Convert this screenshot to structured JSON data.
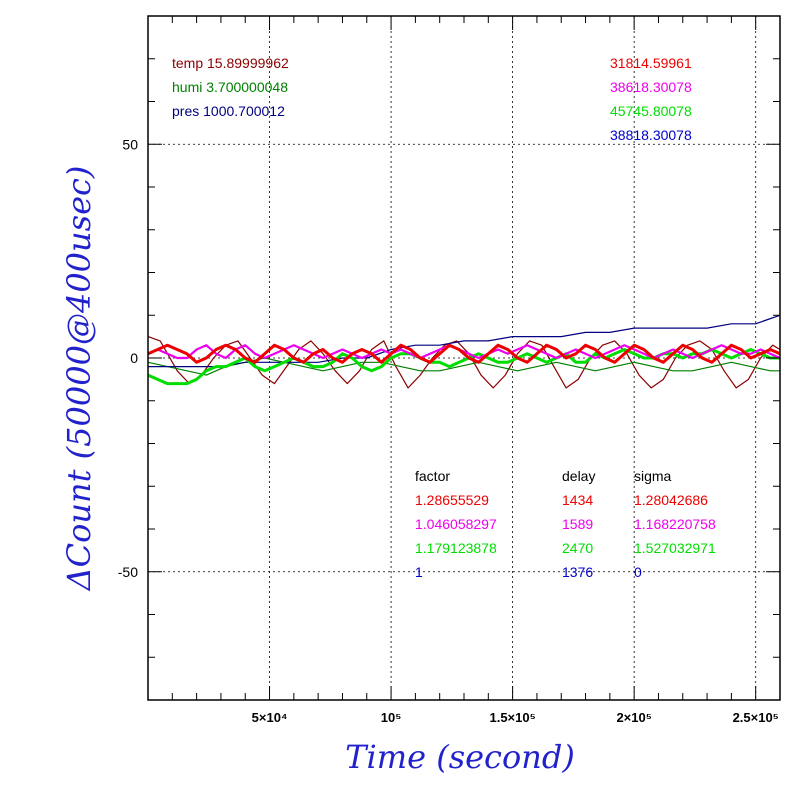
{
  "chart_data": {
    "type": "line",
    "xlabel": "Time (second)",
    "ylabel": "ΔCount (50000@400usec)",
    "xlim": [
      0,
      260000
    ],
    "ylim": [
      -80,
      80
    ],
    "grid": true,
    "x_ticks": [
      {
        "value": 50000,
        "label": "5×10⁴"
      },
      {
        "value": 100000,
        "label": "10⁵"
      },
      {
        "value": 150000,
        "label": "1.5×10⁵"
      },
      {
        "value": 200000,
        "label": "2×10⁵"
      },
      {
        "value": 250000,
        "label": "2.5×10⁵"
      }
    ],
    "y_ticks": [
      {
        "value": 50,
        "label": "50"
      },
      {
        "value": 0,
        "label": "0"
      },
      {
        "value": -50,
        "label": "-50"
      }
    ],
    "env_legend": [
      {
        "text": "temp 15.89999962",
        "color": "#8b0000"
      },
      {
        "text": "humi 3.700000048",
        "color": "#008000"
      },
      {
        "text": "pres 1000.700012",
        "color": "#000080"
      }
    ],
    "count_legend": [
      {
        "text": "31814.59961",
        "color": "#ee0000"
      },
      {
        "text": "38618.30078",
        "color": "#ee00ee"
      },
      {
        "text": "45745.80078",
        "color": "#00dd00"
      },
      {
        "text": "38818.30078",
        "color": "#0000cc"
      }
    ],
    "stats_table": {
      "headers": [
        "factor",
        "delay",
        "sigma"
      ],
      "rows": [
        {
          "factor": "1.28655529",
          "delay": "1434",
          "sigma": "1.28042686",
          "color": "#ee0000"
        },
        {
          "factor": "1.046058297",
          "delay": "1589",
          "sigma": "1.168220758",
          "color": "#ee00ee"
        },
        {
          "factor": "1.179123878",
          "delay": "2470",
          "sigma": "1.527032971",
          "color": "#00dd00"
        },
        {
          "factor": "1",
          "delay": "1376",
          "sigma": "0",
          "color": "#0000cc"
        }
      ]
    },
    "series": [
      {
        "color": "#8b0000",
        "x": [
          0,
          5000,
          12000,
          17000,
          22000,
          27000,
          32000,
          37000,
          42000,
          47000,
          52000,
          57000,
          62000,
          67000,
          72000,
          77000,
          82000,
          87000,
          92000,
          97000,
          102000,
          107000,
          112000,
          117000,
          122000,
          127000,
          132000,
          137000,
          142000,
          147000,
          152000,
          157000,
          162000,
          167000,
          172000,
          177000,
          182000,
          187000,
          192000,
          197000,
          202000,
          207000,
          212000,
          217000,
          222000,
          227000,
          232000,
          237000,
          242000,
          247000,
          252000,
          257000,
          260000
        ],
        "y": [
          5,
          4,
          -3,
          -6,
          -4,
          0,
          3,
          4,
          0,
          -4,
          -6,
          -2,
          2,
          4,
          1,
          -3,
          -6,
          -3,
          2,
          4,
          -2,
          -7,
          -4,
          0,
          3,
          4,
          1,
          -4,
          -7,
          -4,
          1,
          4,
          3,
          -2,
          -7,
          -5,
          0,
          3,
          4,
          1,
          -4,
          -7,
          -5,
          0,
          3,
          4,
          2,
          -3,
          -7,
          -5,
          0,
          3,
          2
        ]
      },
      {
        "color": "#008000",
        "x": [
          0,
          8000,
          16000,
          24000,
          32000,
          40000,
          48000,
          56000,
          64000,
          72000,
          80000,
          88000,
          96000,
          104000,
          112000,
          120000,
          128000,
          136000,
          144000,
          152000,
          160000,
          168000,
          176000,
          184000,
          192000,
          200000,
          208000,
          216000,
          224000,
          232000,
          240000,
          248000,
          256000,
          260000
        ],
        "y": [
          -1,
          -2,
          -3,
          -4,
          -2,
          -1,
          0,
          -1,
          -2,
          -3,
          -2,
          -1,
          -1,
          -2,
          -3,
          -3,
          -2,
          -1,
          -2,
          -3,
          -2,
          -1,
          -2,
          -3,
          -2,
          -1,
          -2,
          -3,
          -3,
          -2,
          -1,
          -2,
          -3,
          -3
        ]
      },
      {
        "color": "#000080",
        "x": [
          0,
          10000,
          20000,
          30000,
          40000,
          50000,
          60000,
          70000,
          80000,
          90000,
          100000,
          110000,
          120000,
          130000,
          140000,
          150000,
          160000,
          170000,
          180000,
          190000,
          200000,
          210000,
          220000,
          230000,
          240000,
          250000,
          255000,
          260000
        ],
        "y": [
          -2,
          -2,
          -2,
          -2,
          -1,
          -1,
          -1,
          -1,
          0,
          0,
          2,
          3,
          3,
          4,
          4,
          5,
          5,
          5,
          6,
          6,
          7,
          7,
          7,
          7,
          8,
          8,
          9,
          10
        ]
      },
      {
        "color": "#00dd00",
        "x": [
          0,
          4000,
          8000,
          12000,
          16000,
          20000,
          24000,
          28000,
          32000,
          36000,
          40000,
          44000,
          48000,
          52000,
          56000,
          60000,
          64000,
          68000,
          72000,
          76000,
          80000,
          84000,
          88000,
          92000,
          96000,
          100000,
          104000,
          108000,
          112000,
          116000,
          120000,
          124000,
          128000,
          132000,
          136000,
          140000,
          144000,
          148000,
          152000,
          156000,
          160000,
          164000,
          168000,
          172000,
          176000,
          180000,
          184000,
          188000,
          192000,
          196000,
          200000,
          204000,
          208000,
          212000,
          216000,
          220000,
          224000,
          228000,
          232000,
          236000,
          240000,
          244000,
          248000,
          252000,
          256000,
          260000
        ],
        "y": [
          -4,
          -5,
          -6,
          -6,
          -6,
          -5,
          -3,
          -2,
          -2,
          -1,
          0,
          -2,
          -3,
          -2,
          -1,
          0,
          -1,
          -2,
          -2,
          -1,
          1,
          0,
          -2,
          -3,
          -2,
          0,
          1,
          1,
          0,
          -1,
          -1,
          -2,
          -1,
          0,
          1,
          0,
          -1,
          -1,
          0,
          1,
          0,
          -1,
          0,
          1,
          -1,
          -1,
          1,
          0,
          1,
          2,
          1,
          0,
          0,
          1,
          1,
          0,
          1,
          1,
          2,
          1,
          0,
          1,
          2,
          1,
          0,
          0
        ]
      },
      {
        "color": "#ee00ee",
        "x": [
          0,
          4000,
          8000,
          12000,
          16000,
          20000,
          24000,
          28000,
          32000,
          36000,
          40000,
          44000,
          48000,
          52000,
          56000,
          60000,
          64000,
          68000,
          72000,
          76000,
          80000,
          84000,
          88000,
          92000,
          96000,
          100000,
          104000,
          108000,
          112000,
          116000,
          120000,
          124000,
          128000,
          132000,
          136000,
          140000,
          144000,
          148000,
          152000,
          156000,
          160000,
          164000,
          168000,
          172000,
          176000,
          180000,
          184000,
          188000,
          192000,
          196000,
          200000,
          204000,
          208000,
          212000,
          216000,
          220000,
          224000,
          228000,
          232000,
          236000,
          240000,
          244000,
          248000,
          252000,
          256000,
          260000
        ],
        "y": [
          1,
          2,
          1,
          0,
          0,
          2,
          3,
          1,
          0,
          2,
          3,
          1,
          0,
          1,
          2,
          3,
          2,
          1,
          0,
          1,
          2,
          1,
          0,
          1,
          2,
          1,
          2,
          1,
          0,
          1,
          2,
          3,
          2,
          1,
          0,
          1,
          2,
          1,
          2,
          3,
          2,
          1,
          0,
          1,
          2,
          1,
          0,
          1,
          2,
          3,
          2,
          1,
          0,
          1,
          2,
          1,
          0,
          1,
          2,
          3,
          2,
          1,
          1,
          2,
          1,
          0
        ]
      },
      {
        "color": "#ee0000",
        "x": [
          0,
          4000,
          8000,
          12000,
          16000,
          20000,
          24000,
          28000,
          32000,
          36000,
          40000,
          44000,
          48000,
          52000,
          56000,
          60000,
          64000,
          68000,
          72000,
          76000,
          80000,
          84000,
          88000,
          92000,
          96000,
          100000,
          104000,
          108000,
          112000,
          116000,
          120000,
          124000,
          128000,
          132000,
          136000,
          140000,
          144000,
          148000,
          152000,
          156000,
          160000,
          164000,
          168000,
          172000,
          176000,
          180000,
          184000,
          188000,
          192000,
          196000,
          200000,
          204000,
          208000,
          212000,
          216000,
          220000,
          224000,
          228000,
          232000,
          236000,
          240000,
          244000,
          248000,
          252000,
          256000,
          260000
        ],
        "y": [
          1,
          2,
          3,
          2,
          1,
          -1,
          0,
          2,
          3,
          2,
          0,
          -1,
          1,
          3,
          2,
          0,
          -1,
          1,
          2,
          0,
          -1,
          1,
          2,
          1,
          -1,
          1,
          3,
          2,
          0,
          -1,
          1,
          3,
          2,
          0,
          -1,
          1,
          3,
          2,
          0,
          -1,
          1,
          3,
          2,
          0,
          1,
          3,
          2,
          0,
          -1,
          1,
          3,
          2,
          0,
          -1,
          1,
          3,
          2,
          0,
          -1,
          1,
          3,
          2,
          0,
          1,
          2,
          1
        ]
      }
    ]
  }
}
